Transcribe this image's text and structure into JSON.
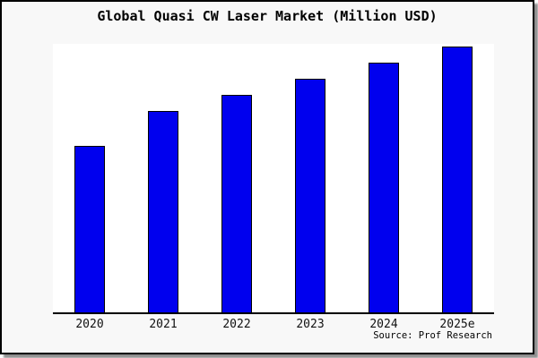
{
  "chart_data": {
    "type": "bar",
    "title": "Global Quasi CW Laser Market (Million USD)",
    "categories": [
      "2020",
      "2021",
      "2022",
      "2023",
      "2024",
      "2025e"
    ],
    "values": [
      62,
      75,
      81,
      87,
      93,
      99
    ],
    "value_note": "no y-axis ticks shown; values estimated relative to plot height (index units)",
    "xlabel": "",
    "ylabel": "",
    "ylim": [
      0,
      100
    ],
    "grid": false,
    "legend": "none",
    "bar_color": "#0000ee",
    "bar_border_color": "#000000",
    "plot_background": "#ffffff",
    "figure_background": "#f8f8f8",
    "source": "Source: Prof Research"
  }
}
